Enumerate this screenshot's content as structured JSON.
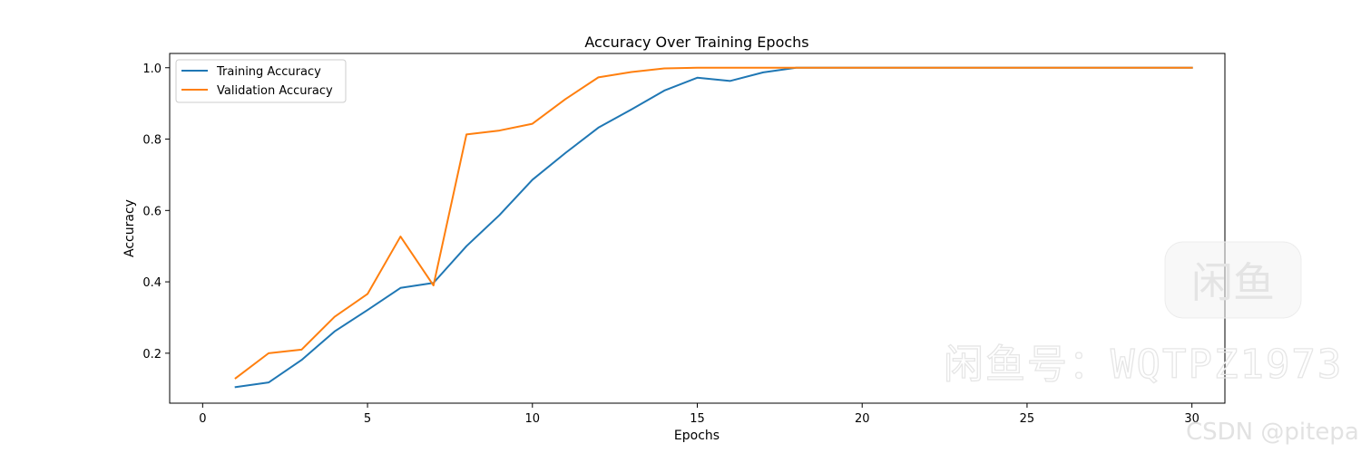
{
  "chart_data": {
    "type": "line",
    "title": "Accuracy Over Training Epochs",
    "xlabel": "Epochs",
    "ylabel": "Accuracy",
    "xlim": [
      -1,
      31
    ],
    "ylim": [
      0.06,
      1.04
    ],
    "xticks": [
      0,
      5,
      10,
      15,
      20,
      25,
      30
    ],
    "yticks": [
      0.2,
      0.4,
      0.6,
      0.8,
      1.0
    ],
    "ytick_labels": [
      "0.2",
      "0.4",
      "0.6",
      "0.8",
      "1.0"
    ],
    "grid": false,
    "legend": "top-left",
    "x": [
      1,
      2,
      3,
      4,
      5,
      6,
      7,
      8,
      9,
      10,
      11,
      12,
      13,
      14,
      15,
      16,
      17,
      18,
      19,
      20,
      21,
      22,
      23,
      24,
      25,
      26,
      27,
      28,
      29,
      30
    ],
    "series": [
      {
        "name": "Training Accuracy",
        "color": "#1f77b4",
        "values": [
          0.105,
          0.118,
          0.181,
          0.261,
          0.321,
          0.383,
          0.397,
          0.5,
          0.587,
          0.686,
          0.761,
          0.832,
          0.883,
          0.936,
          0.972,
          0.963,
          0.987,
          1.0,
          1.0,
          1.0,
          1.0,
          1.0,
          1.0,
          1.0,
          1.0,
          1.0,
          1.0,
          1.0,
          1.0,
          1.0
        ]
      },
      {
        "name": "Validation Accuracy",
        "color": "#ff7f0e",
        "values": [
          0.13,
          0.2,
          0.21,
          0.302,
          0.366,
          0.527,
          0.39,
          0.813,
          0.824,
          0.843,
          0.912,
          0.973,
          0.988,
          0.998,
          1.0,
          1.0,
          1.0,
          1.0,
          1.0,
          1.0,
          1.0,
          1.0,
          1.0,
          1.0,
          1.0,
          1.0,
          1.0,
          1.0,
          1.0,
          1.0
        ]
      }
    ]
  },
  "watermark": {
    "badge_text": "闲鱼",
    "id_text": "闲鱼号：WQTPZ1973",
    "csdn_text": "CSDN @pitepa"
  }
}
